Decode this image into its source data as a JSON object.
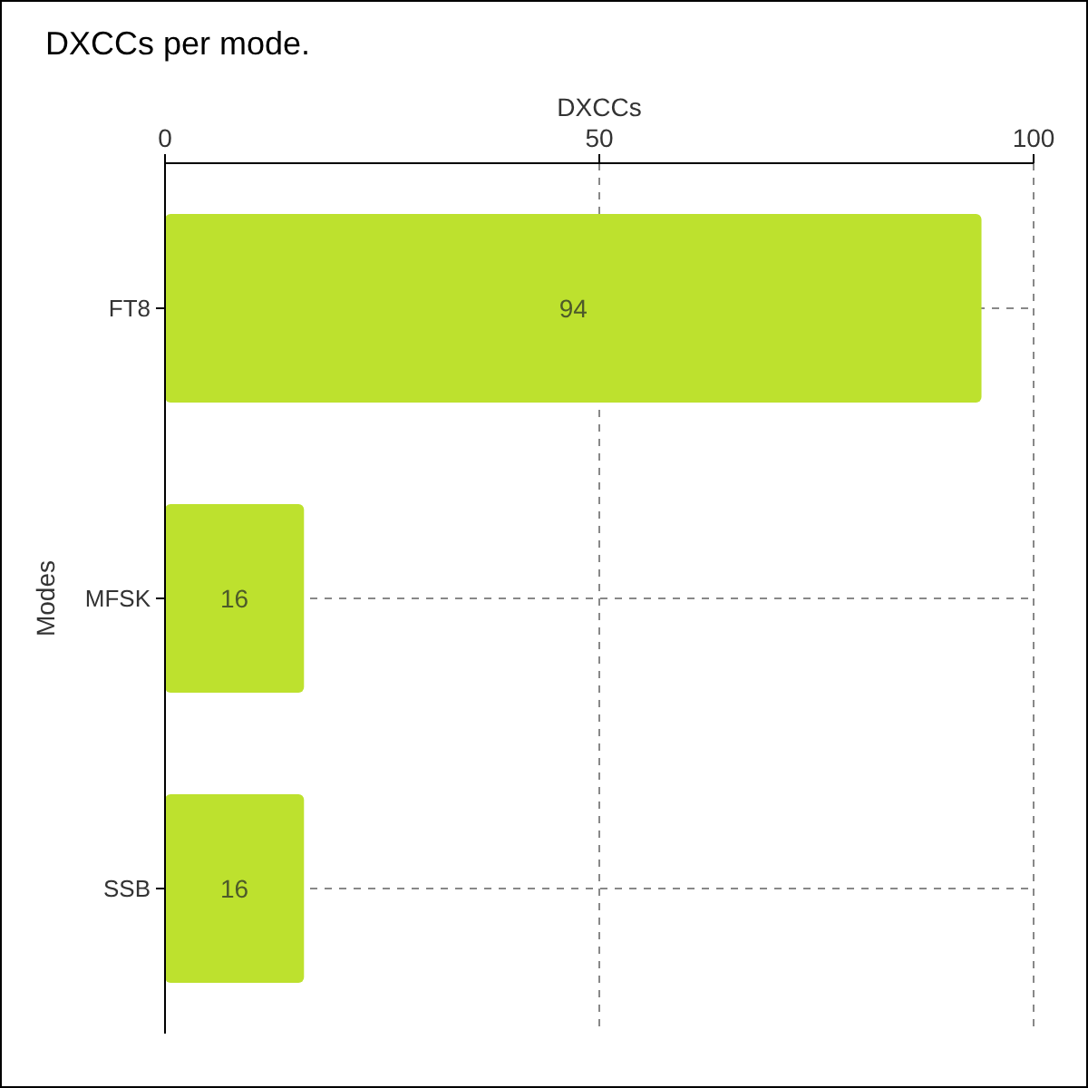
{
  "chart_data": {
    "type": "bar",
    "title": "DXCCs per mode.",
    "orientation": "horizontal",
    "xlabel": "DXCCs",
    "ylabel": "Modes",
    "categories": [
      "FT8",
      "MFSK",
      "SSB"
    ],
    "values": [
      94,
      16,
      16
    ],
    "color": "#bde12e",
    "xlim": [
      0,
      100
    ],
    "xticks": [
      0,
      50,
      100
    ],
    "grid": true,
    "data_labels": true
  }
}
